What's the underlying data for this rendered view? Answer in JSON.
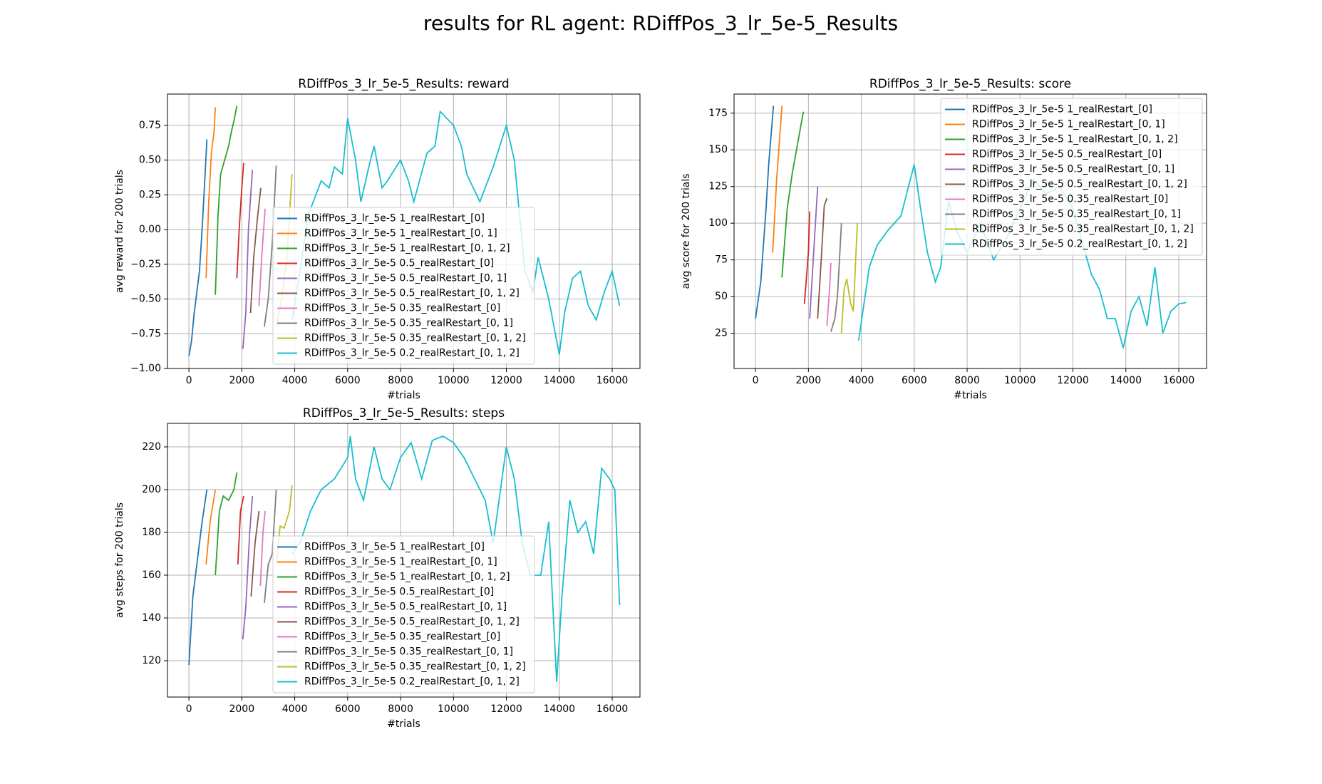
{
  "title": "results for RL agent: RDiffPos_3_lr_5e-5_Results",
  "chart_data": [
    {
      "type": "line",
      "title": "RDiffPos_3_lr_5e-5_Results: reward",
      "xlabel": "#trials",
      "ylabel": "avg reward for 200 trials",
      "xlim": [
        -810,
        17050
      ],
      "ylim": [
        -1.0,
        0.975
      ],
      "xticks": [
        0,
        2000,
        4000,
        6000,
        8000,
        10000,
        12000,
        14000,
        16000
      ],
      "yticks": [
        {
          "value": -1.0,
          "label": "−1.00"
        },
        {
          "value": -0.75,
          "label": "−0.75"
        },
        {
          "value": -0.5,
          "label": "−0.50"
        },
        {
          "value": -0.25,
          "label": "−0.25"
        },
        {
          "value": 0,
          "label": "0.00"
        },
        0.25,
        {
          "value": 0.5,
          "label": "0.50"
        },
        0.75
      ],
      "grid": true,
      "legend": "lower center",
      "series": [
        {
          "name": "RDiffPos_3_lr_5e-5 1_realRestart_[0]",
          "color": "#1f77b4",
          "x": [
            0,
            100,
            200,
            300,
            400,
            500,
            600,
            680
          ],
          "values": [
            -0.91,
            -0.8,
            -0.6,
            -0.45,
            -0.3,
            0.0,
            0.35,
            0.65
          ]
        },
        {
          "name": "RDiffPos_3_lr_5e-5 1_realRestart_[0, 1]",
          "color": "#ff7f0e",
          "x": [
            650,
            750,
            850,
            950,
            1000
          ],
          "values": [
            -0.35,
            0.2,
            0.55,
            0.7,
            0.88
          ]
        },
        {
          "name": "RDiffPos_3_lr_5e-5 1_realRestart_[0, 1, 2]",
          "color": "#2ca02c",
          "x": [
            1000,
            1100,
            1200,
            1350,
            1500,
            1600,
            1700,
            1810
          ],
          "values": [
            -0.47,
            0.1,
            0.4,
            0.5,
            0.6,
            0.7,
            0.78,
            0.89
          ]
        },
        {
          "name": "RDiffPos_3_lr_5e-5 0.5_realRestart_[0]",
          "color": "#d62728",
          "x": [
            1810,
            1900,
            2000,
            2070
          ],
          "values": [
            -0.35,
            0.0,
            0.3,
            0.48
          ]
        },
        {
          "name": "RDiffPos_3_lr_5e-5 0.5_realRestart_[0, 1]",
          "color": "#9467bd",
          "x": [
            2040,
            2150,
            2250,
            2400
          ],
          "values": [
            -0.86,
            -0.6,
            0.0,
            0.43
          ]
        },
        {
          "name": "RDiffPos_3_lr_5e-5 0.5_realRestart_[0, 1, 2]",
          "color": "#8c564b",
          "x": [
            2330,
            2450,
            2600,
            2720
          ],
          "values": [
            -0.6,
            -0.2,
            0.1,
            0.3
          ]
        },
        {
          "name": "RDiffPos_3_lr_5e-5 0.35_realRestart_[0]",
          "color": "#e377c2",
          "x": [
            2650,
            2750,
            2880
          ],
          "values": [
            -0.55,
            -0.2,
            0.15
          ]
        },
        {
          "name": "RDiffPos_3_lr_5e-5 0.35_realRestart_[0, 1]",
          "color": "#7f7f7f",
          "x": [
            2850,
            3000,
            3150,
            3300
          ],
          "values": [
            -0.7,
            -0.5,
            -0.1,
            0.46
          ]
        },
        {
          "name": "RDiffPos_3_lr_5e-5 0.35_realRestart_[0, 1, 2]",
          "color": "#bcbd22",
          "x": [
            3300,
            3500,
            3700,
            3900
          ],
          "values": [
            -0.7,
            -0.5,
            -0.2,
            0.4
          ]
        },
        {
          "name": "RDiffPos_3_lr_5e-5 0.2_realRestart_[0, 1, 2]",
          "color": "#17becf",
          "x": [
            3900,
            4200,
            4500,
            4800,
            5000,
            5300,
            5500,
            5800,
            6000,
            6300,
            6500,
            6800,
            7000,
            7300,
            7500,
            8000,
            8300,
            8500,
            9000,
            9300,
            9500,
            10000,
            10300,
            10500,
            11000,
            11300,
            11500,
            12000,
            12300,
            12700,
            13000,
            13200,
            13600,
            14000,
            14200,
            14500,
            14800,
            15100,
            15400,
            15700,
            16000,
            16280
          ],
          "values": [
            -0.65,
            -0.3,
            0.1,
            0.25,
            0.35,
            0.3,
            0.45,
            0.4,
            0.8,
            0.5,
            0.2,
            0.45,
            0.6,
            0.3,
            0.35,
            0.5,
            0.35,
            0.2,
            0.55,
            0.6,
            0.85,
            0.75,
            0.6,
            0.4,
            0.2,
            0.35,
            0.45,
            0.75,
            0.5,
            -0.3,
            -0.45,
            -0.2,
            -0.5,
            -0.9,
            -0.6,
            -0.35,
            -0.3,
            -0.55,
            -0.65,
            -0.45,
            -0.3,
            -0.55
          ]
        }
      ]
    },
    {
      "type": "line",
      "title": "RDiffPos_3_lr_5e-5_Results: score",
      "xlabel": "#trials",
      "ylabel": "avg score for 200 trials",
      "xlim": [
        -810,
        17050
      ],
      "ylim": [
        1,
        188
      ],
      "xticks": [
        0,
        2000,
        4000,
        6000,
        8000,
        10000,
        12000,
        14000,
        16000
      ],
      "yticks": [
        25,
        50,
        75,
        100,
        125,
        150,
        175
      ],
      "grid": true,
      "legend": "upper right",
      "series": [
        {
          "name": "RDiffPos_3_lr_5e-5 1_realRestart_[0]",
          "color": "#1f77b4",
          "x": [
            0,
            200,
            400,
            500,
            680
          ],
          "values": [
            35,
            60,
            110,
            140,
            180
          ]
        },
        {
          "name": "RDiffPos_3_lr_5e-5 1_realRestart_[0, 1]",
          "color": "#ff7f0e",
          "x": [
            650,
            800,
            1000
          ],
          "values": [
            80,
            130,
            180
          ]
        },
        {
          "name": "RDiffPos_3_lr_5e-5 1_realRestart_[0, 1, 2]",
          "color": "#2ca02c",
          "x": [
            1000,
            1200,
            1400,
            1600,
            1810
          ],
          "values": [
            63,
            110,
            135,
            155,
            176
          ]
        },
        {
          "name": "RDiffPos_3_lr_5e-5 0.5_realRestart_[0]",
          "color": "#d62728",
          "x": [
            1850,
            2000,
            2050
          ],
          "values": [
            45,
            80,
            108
          ]
        },
        {
          "name": "RDiffPos_3_lr_5e-5 0.5_realRestart_[0, 1]",
          "color": "#9467bd",
          "x": [
            2050,
            2200,
            2350
          ],
          "values": [
            35,
            80,
            125
          ]
        },
        {
          "name": "RDiffPos_3_lr_5e-5 0.5_realRestart_[0, 1, 2]",
          "color": "#8c564b",
          "x": [
            2350,
            2500,
            2600,
            2700
          ],
          "values": [
            35,
            80,
            112,
            117
          ]
        },
        {
          "name": "RDiffPos_3_lr_5e-5 0.35_realRestart_[0]",
          "color": "#e377c2",
          "x": [
            2700,
            2800,
            2850
          ],
          "values": [
            30,
            55,
            73
          ]
        },
        {
          "name": "RDiffPos_3_lr_5e-5 0.35_realRestart_[0, 1]",
          "color": "#7f7f7f",
          "x": [
            2850,
            3000,
            3100,
            3250
          ],
          "values": [
            26,
            35,
            50,
            100
          ]
        },
        {
          "name": "RDiffPos_3_lr_5e-5 0.35_realRestart_[0, 1, 2]",
          "color": "#bcbd22",
          "x": [
            3250,
            3350,
            3450,
            3600,
            3700,
            3850
          ],
          "values": [
            25,
            55,
            62,
            45,
            40,
            100
          ]
        },
        {
          "name": "RDiffPos_3_lr_5e-5 0.2_realRestart_[0, 1, 2]",
          "color": "#17becf",
          "x": [
            3900,
            4100,
            4300,
            4600,
            5000,
            5500,
            6000,
            6200,
            6500,
            6800,
            7000,
            7300,
            7600,
            8000,
            8500,
            9000,
            9500,
            10000,
            10500,
            11000,
            11500,
            12000,
            12300,
            12700,
            13000,
            13300,
            13600,
            13900,
            14200,
            14500,
            14800,
            15100,
            15400,
            15700,
            16000,
            16280
          ],
          "values": [
            20,
            45,
            70,
            85,
            95,
            105,
            140,
            115,
            80,
            60,
            70,
            115,
            95,
            80,
            100,
            75,
            90,
            110,
            130,
            120,
            125,
            110,
            90,
            65,
            55,
            35,
            35,
            15,
            40,
            50,
            30,
            70,
            25,
            40,
            45,
            46
          ]
        }
      ]
    },
    {
      "type": "line",
      "title": "RDiffPos_3_lr_5e-5_Results: steps",
      "xlabel": "#trials",
      "ylabel": "avg steps for 200 trials",
      "xlim": [
        -810,
        17050
      ],
      "ylim": [
        103,
        231
      ],
      "xticks": [
        0,
        2000,
        4000,
        6000,
        8000,
        10000,
        12000,
        14000,
        16000
      ],
      "yticks": [
        120,
        140,
        160,
        180,
        200,
        220
      ],
      "grid": true,
      "legend": "lower center",
      "series": [
        {
          "name": "RDiffPos_3_lr_5e-5 1_realRestart_[0]",
          "color": "#1f77b4",
          "x": [
            0,
            150,
            300,
            500,
            680
          ],
          "values": [
            118,
            150,
            165,
            185,
            200
          ]
        },
        {
          "name": "RDiffPos_3_lr_5e-5 1_realRestart_[0, 1]",
          "color": "#ff7f0e",
          "x": [
            650,
            800,
            1000
          ],
          "values": [
            165,
            185,
            200
          ]
        },
        {
          "name": "RDiffPos_3_lr_5e-5 1_realRestart_[0, 1, 2]",
          "color": "#2ca02c",
          "x": [
            1000,
            1150,
            1300,
            1500,
            1700,
            1810
          ],
          "values": [
            160,
            190,
            197,
            195,
            200,
            208
          ]
        },
        {
          "name": "RDiffPos_3_lr_5e-5 0.5_realRestart_[0]",
          "color": "#d62728",
          "x": [
            1850,
            1950,
            2070
          ],
          "values": [
            165,
            190,
            197
          ]
        },
        {
          "name": "RDiffPos_3_lr_5e-5 0.5_realRestart_[0, 1]",
          "color": "#9467bd",
          "x": [
            2040,
            2150,
            2300,
            2400
          ],
          "values": [
            130,
            145,
            180,
            197
          ]
        },
        {
          "name": "RDiffPos_3_lr_5e-5 0.5_realRestart_[0, 1, 2]",
          "color": "#8c564b",
          "x": [
            2350,
            2500,
            2650
          ],
          "values": [
            150,
            175,
            190
          ]
        },
        {
          "name": "RDiffPos_3_lr_5e-5 0.35_realRestart_[0]",
          "color": "#e377c2",
          "x": [
            2700,
            2800,
            2880
          ],
          "values": [
            155,
            180,
            190
          ]
        },
        {
          "name": "RDiffPos_3_lr_5e-5 0.35_realRestart_[0, 1]",
          "color": "#7f7f7f",
          "x": [
            2850,
            3000,
            3150,
            3300
          ],
          "values": [
            147,
            165,
            170,
            200
          ]
        },
        {
          "name": "RDiffPos_3_lr_5e-5 0.35_realRestart_[0, 1, 2]",
          "color": "#bcbd22",
          "x": [
            3300,
            3450,
            3600,
            3800,
            3900
          ],
          "values": [
            165,
            183,
            182,
            190,
            202
          ]
        },
        {
          "name": "RDiffPos_3_lr_5e-5 0.2_realRestart_[0, 1, 2]",
          "color": "#17becf",
          "x": [
            3900,
            4200,
            4600,
            5000,
            5500,
            6000,
            6100,
            6300,
            6600,
            7000,
            7300,
            7600,
            8000,
            8400,
            8800,
            9200,
            9600,
            10000,
            10400,
            10800,
            11200,
            11500,
            12000,
            12300,
            12600,
            12900,
            13300,
            13600,
            13900,
            14100,
            14400,
            14700,
            15000,
            15300,
            15600,
            15900,
            16100,
            16280
          ],
          "values": [
            170,
            175,
            190,
            200,
            205,
            215,
            225,
            205,
            195,
            220,
            205,
            200,
            215,
            222,
            205,
            223,
            225,
            222,
            215,
            205,
            195,
            175,
            220,
            205,
            175,
            160,
            160,
            185,
            110,
            150,
            195,
            180,
            185,
            170,
            210,
            205,
            200,
            146
          ]
        }
      ]
    }
  ]
}
